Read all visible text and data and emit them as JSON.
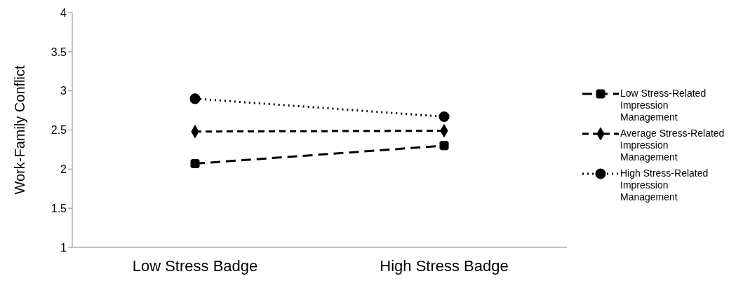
{
  "chart_data": {
    "type": "line",
    "ylabel": "Work-Family Conflict",
    "categories": [
      "Low Stress Badge",
      "High Stress Badge"
    ],
    "ylim": [
      1,
      4
    ],
    "yticks": [
      1,
      1.5,
      2,
      2.5,
      3,
      3.5,
      4
    ],
    "grid": false,
    "legend": "right",
    "series": [
      {
        "name": "Low Stress-Related Impression Management",
        "color": "#000000",
        "values": [
          2.07,
          2.3
        ],
        "marker": "square",
        "line_style": "dashed"
      },
      {
        "name": "Average Stress-Related Impression Management",
        "color": "#000000",
        "values": [
          2.48,
          2.49
        ],
        "marker": "diamond",
        "line_style": "dashed"
      },
      {
        "name": "High Stress-Related Impression Management",
        "color": "#000000",
        "values": [
          2.9,
          2.67
        ],
        "marker": "circle",
        "line_style": "dotted"
      }
    ]
  }
}
